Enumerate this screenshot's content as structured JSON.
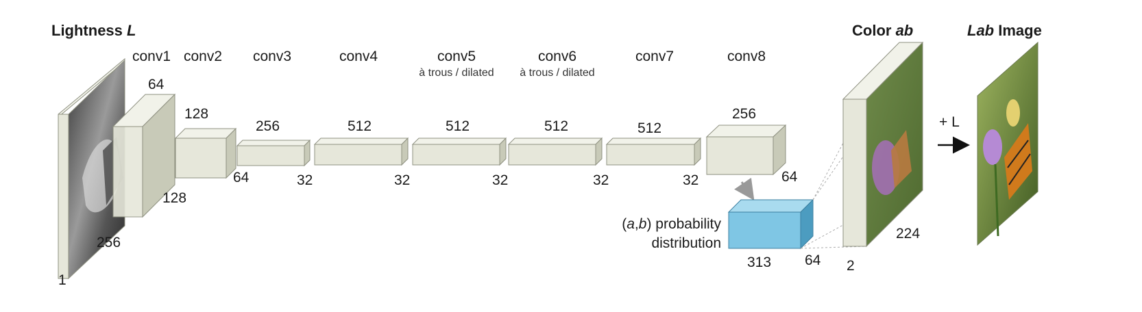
{
  "titles": {
    "lightness_bold": "Lightness ",
    "lightness_ital": "L",
    "color_bold": "Color ",
    "color_ital": "ab",
    "lab_ital": "Lab",
    "lab_bold": " Image"
  },
  "layers": [
    {
      "name": "conv1"
    },
    {
      "name": "conv2"
    },
    {
      "name": "conv3"
    },
    {
      "name": "conv4"
    },
    {
      "name": "conv5",
      "note": "à trous / dilated"
    },
    {
      "name": "conv6",
      "note": "à trous / dilated"
    },
    {
      "name": "conv7"
    },
    {
      "name": "conv8"
    }
  ],
  "dims": {
    "input_depth": "1",
    "input_size": "256",
    "conv1_channels": "64",
    "conv1_size": "128",
    "conv2_channels": "128",
    "conv2_size": "64",
    "conv3_channels": "256",
    "conv3_size": "32",
    "conv4_channels": "512",
    "conv4_size": "32",
    "conv5_channels": "512",
    "conv5_size": "32",
    "conv6_channels": "512",
    "conv6_size": "32",
    "conv7_channels": "512",
    "conv7_size": "32",
    "conv8_channels": "256",
    "conv8_size": "64",
    "prob_bins": "313",
    "prob_size": "64",
    "ab_channels": "2",
    "ab_size": "224"
  },
  "prob_label": {
    "open": "(",
    "a": "a",
    "comma": ",",
    "b": "b",
    "close": ") probability",
    "line2": "distribution"
  },
  "plus_l": "+ L",
  "colors": {
    "block_front": "#e6e7da",
    "block_top": "#f1f2e9",
    "block_side": "#c8cab8",
    "block_edge": "#8e9080",
    "prob_front": "#7fc6e4",
    "prob_top": "#a9dbef",
    "prob_side": "#4c9cc0"
  }
}
